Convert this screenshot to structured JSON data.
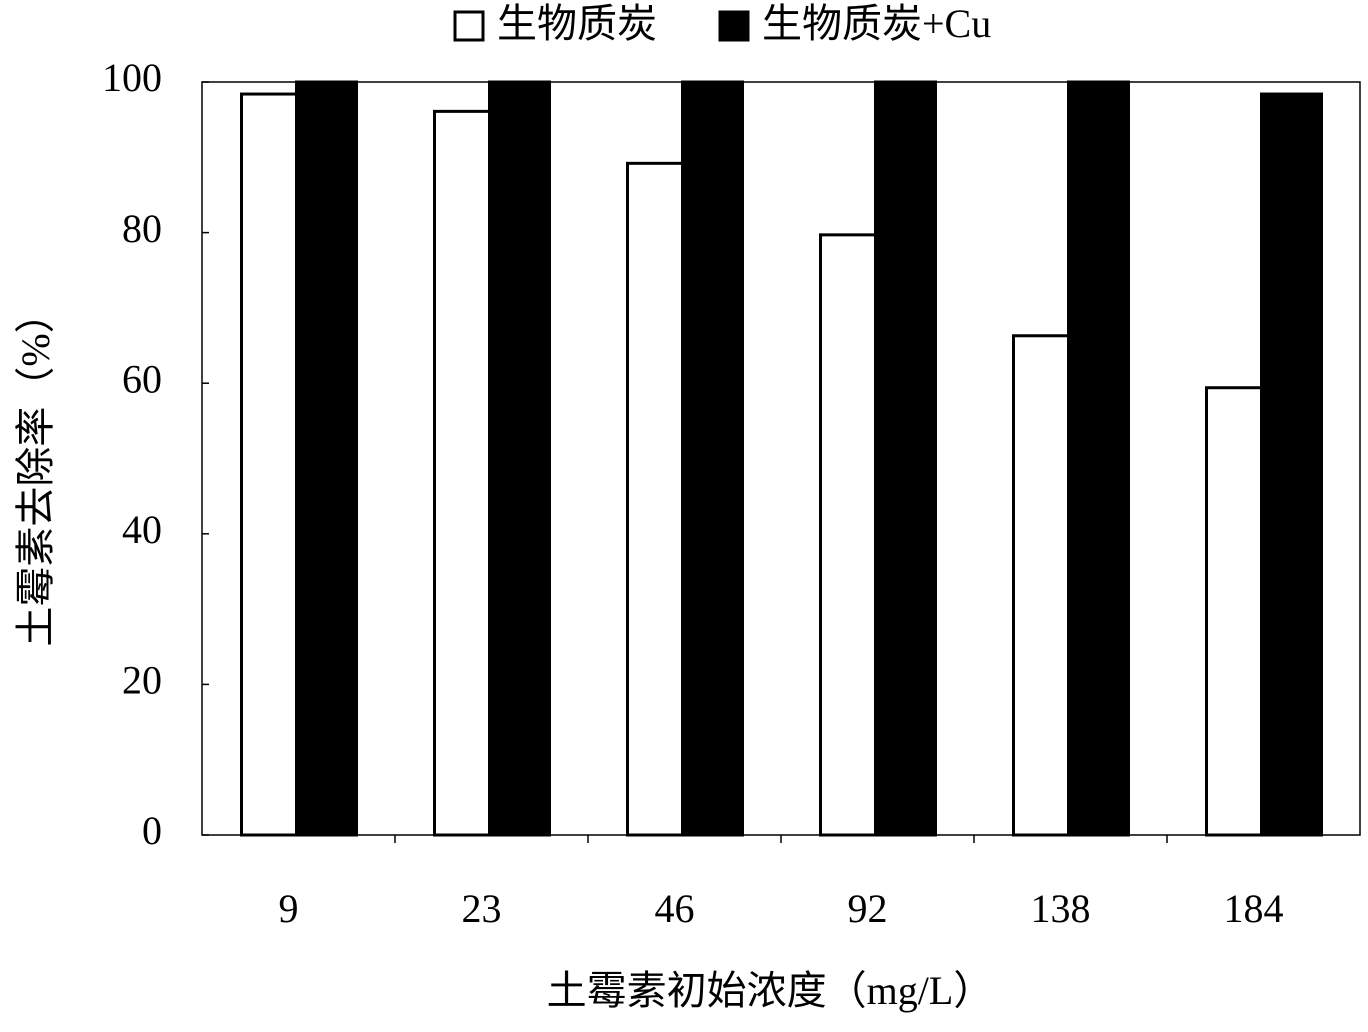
{
  "chart_data": {
    "type": "bar",
    "x_label": "土霉素初始浓度（mg/L）",
    "y_label": "土霉素去除率（%）",
    "categories": [
      "9",
      "23",
      "46",
      "92",
      "138",
      "184"
    ],
    "series": [
      {
        "name": "生物质炭",
        "color": "#ffffff",
        "values": [
          98.4,
          96.1,
          89.2,
          79.7,
          66.3,
          59.4
        ]
      },
      {
        "name": "生物质炭+Cu",
        "color": "#000000",
        "values": [
          100,
          100,
          100,
          100,
          100,
          98.4
        ]
      }
    ],
    "ylim": [
      0,
      100
    ],
    "yticks": [
      0,
      20,
      40,
      60,
      80,
      100
    ],
    "legend": "top"
  }
}
